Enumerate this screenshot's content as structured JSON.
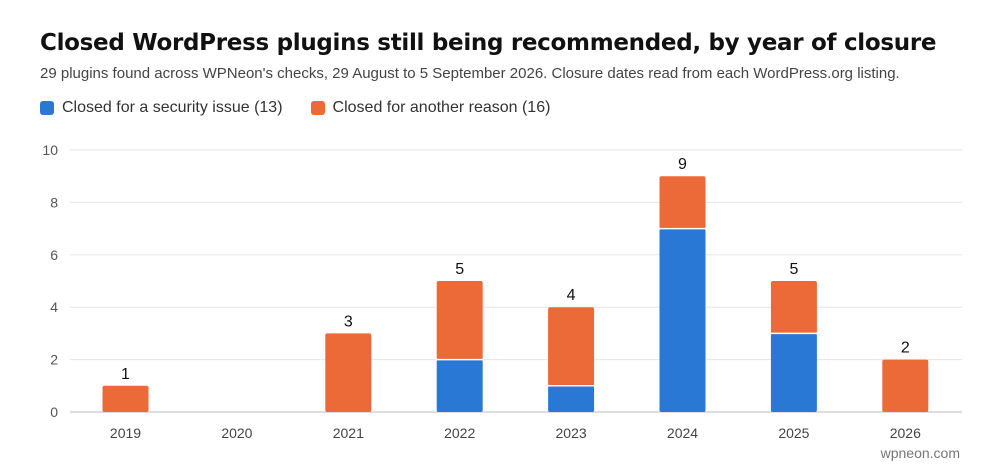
{
  "chart_data": {
    "type": "bar",
    "stacked": true,
    "title": "Closed WordPress plugins still being recommended, by year of closure",
    "subtitle": "29 plugins found across WPNeon's checks, 29 August to 5 September 2026. Closure dates read from each WordPress.org listing.",
    "categories": [
      "2019",
      "2020",
      "2021",
      "2022",
      "2023",
      "2024",
      "2025",
      "2026"
    ],
    "series": [
      {
        "name": "Closed for a security issue (13)",
        "color": "#2a78d6",
        "values": [
          0,
          0,
          0,
          2,
          1,
          7,
          3,
          0
        ]
      },
      {
        "name": "Closed for another reason (16)",
        "color": "#ec6a37",
        "values": [
          1,
          0,
          3,
          3,
          3,
          2,
          2,
          2
        ]
      }
    ],
    "totals": [
      "1",
      "",
      "3",
      "5",
      "4",
      "9",
      "5",
      "2"
    ],
    "ylim": [
      0,
      10
    ],
    "yticks": [
      "0",
      "2",
      "4",
      "6",
      "8",
      "10"
    ],
    "grid": true,
    "legend_position": "top-left"
  },
  "credit": "wpneon.com"
}
